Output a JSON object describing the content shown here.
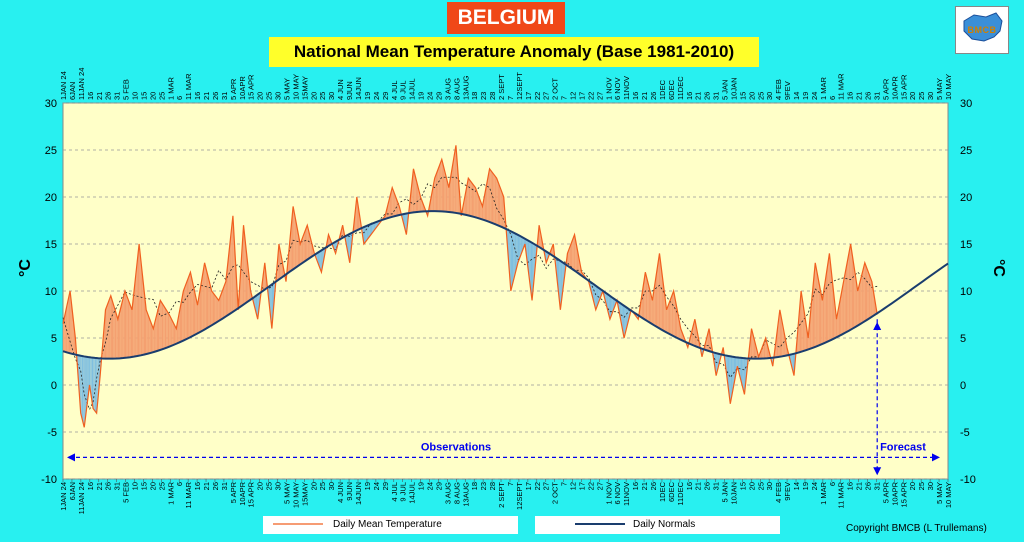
{
  "header": {
    "country": "BELGIUM",
    "title": "National Mean Temperature Anomaly (Base 1981-2010)",
    "logo_text": "BMCB"
  },
  "legend": {
    "mean_label": "Daily Mean Temperature",
    "normal_label": "Daily Normals"
  },
  "copyright": "Copyright BMCB (L Trullemans)",
  "colors": {
    "background": "#28f0f0",
    "plot_area": "#ffffc8",
    "above_normal": "#f4a070",
    "below_normal": "#7fbfe0",
    "observed_line": "#f06020",
    "normal_line": "#1a3d6e",
    "annotation": "#0000ee",
    "country_box": "#f04818",
    "title_box": "#ffff2a"
  },
  "chart_data": {
    "type": "line",
    "title": "National Mean Temperature Anomaly (Base 1981-2010)",
    "ylabel": "°C",
    "xlabel": "",
    "ylim": [
      -10,
      30
    ],
    "yticks": [
      -10,
      -5,
      0,
      5,
      10,
      15,
      20,
      25,
      30
    ],
    "grid": true,
    "x_range": [
      "2024-01-01",
      "2025-05-15"
    ],
    "x_tick_labels": [
      "1JAN 24",
      "6JAN",
      "11JAN 24",
      "16",
      "21",
      "26",
      "31",
      "5 FEB",
      "10",
      "15",
      "20",
      "25",
      "1 MAR",
      "6",
      "11 MAR",
      "16",
      "21",
      "26",
      "31",
      "5 APR",
      "10APR",
      "15 APR",
      "20",
      "25",
      "30",
      "5 MAY",
      "10 MAY",
      "15MAY",
      "20",
      "25",
      "30",
      "4 JUN",
      "9JUN",
      "14JUN",
      "19",
      "24",
      "29",
      "4 JUL",
      "9 JUL",
      "14JUL",
      "19",
      "24",
      "29",
      "3 AUG",
      "8 AUG",
      "13AUG",
      "18",
      "23",
      "28",
      "2 SEPT",
      "7",
      "12SEPT",
      "17",
      "22",
      "27",
      "2 OCT",
      "7",
      "12",
      "17",
      "22",
      "27",
      "1 NOV",
      "6 NOV",
      "11NOV",
      "16",
      "21",
      "26",
      "1DEC",
      "6DEC",
      "11DEC",
      "16",
      "21",
      "26",
      "31",
      "5 JAN",
      "10JAN",
      "15",
      "20",
      "25",
      "30",
      "4 FEB",
      "9FEV",
      "14",
      "19",
      "24",
      "1 MAR",
      "6",
      "11 MAR",
      "16",
      "21",
      "26",
      "31",
      "5 APR",
      "10APR",
      "15 APR",
      "20",
      "25",
      "30",
      "5 MAY",
      "10 MAY"
    ],
    "series": [
      {
        "name": "Daily Mean Temperature",
        "x": [
          "2024-01-01",
          "2024-01-05",
          "2024-01-08",
          "2024-01-11",
          "2024-01-13",
          "2024-01-16",
          "2024-01-18",
          "2024-01-20",
          "2024-01-22",
          "2024-01-25",
          "2024-01-28",
          "2024-02-01",
          "2024-02-05",
          "2024-02-09",
          "2024-02-13",
          "2024-02-17",
          "2024-02-21",
          "2024-02-25",
          "2024-03-01",
          "2024-03-05",
          "2024-03-09",
          "2024-03-13",
          "2024-03-17",
          "2024-03-21",
          "2024-03-25",
          "2024-03-29",
          "2024-04-02",
          "2024-04-06",
          "2024-04-09",
          "2024-04-12",
          "2024-04-16",
          "2024-04-20",
          "2024-04-24",
          "2024-04-28",
          "2024-05-02",
          "2024-05-06",
          "2024-05-10",
          "2024-05-14",
          "2024-05-18",
          "2024-05-22",
          "2024-05-26",
          "2024-05-30",
          "2024-06-03",
          "2024-06-07",
          "2024-06-11",
          "2024-06-15",
          "2024-06-19",
          "2024-06-23",
          "2024-06-27",
          "2024-07-01",
          "2024-07-05",
          "2024-07-09",
          "2024-07-13",
          "2024-07-17",
          "2024-07-21",
          "2024-07-25",
          "2024-07-29",
          "2024-08-02",
          "2024-08-06",
          "2024-08-10",
          "2024-08-13",
          "2024-08-17",
          "2024-08-21",
          "2024-08-25",
          "2024-08-29",
          "2024-09-02",
          "2024-09-06",
          "2024-09-10",
          "2024-09-14",
          "2024-09-18",
          "2024-09-22",
          "2024-09-26",
          "2024-09-30",
          "2024-10-04",
          "2024-10-08",
          "2024-10-12",
          "2024-10-16",
          "2024-10-20",
          "2024-10-24",
          "2024-10-28",
          "2024-11-01",
          "2024-11-05",
          "2024-11-09",
          "2024-11-13",
          "2024-11-17",
          "2024-11-21",
          "2024-11-25",
          "2024-11-29",
          "2024-12-03",
          "2024-12-07",
          "2024-12-11",
          "2024-12-15",
          "2024-12-19",
          "2024-12-23",
          "2024-12-27",
          "2024-12-31",
          "2025-01-04",
          "2025-01-08",
          "2025-01-12",
          "2025-01-16",
          "2025-01-20",
          "2025-01-24",
          "2025-01-28",
          "2025-02-01",
          "2025-02-05",
          "2025-02-09",
          "2025-02-13",
          "2025-02-17",
          "2025-02-21",
          "2025-02-25",
          "2025-03-01",
          "2025-03-05",
          "2025-03-09",
          "2025-03-13",
          "2025-03-17",
          "2025-03-21",
          "2025-03-25",
          "2025-03-29",
          "2025-04-02",
          "2025-04-05"
        ],
        "values": [
          6.5,
          10,
          5,
          -3,
          -4.5,
          0,
          -2.5,
          -3,
          1,
          8,
          9.5,
          7,
          10,
          8,
          15,
          8,
          6,
          9,
          7.5,
          6,
          10,
          12,
          8.5,
          13,
          10,
          9,
          11,
          18,
          8,
          17,
          10,
          7,
          13,
          6,
          15,
          11,
          19,
          15,
          17,
          14,
          12,
          16,
          14,
          17,
          13,
          20,
          15,
          16,
          17,
          18,
          21,
          19,
          16,
          23,
          20,
          18,
          22,
          24,
          21,
          25.5,
          18,
          22,
          21,
          19,
          23,
          22,
          20,
          10,
          13,
          15,
          9,
          17,
          13,
          15,
          8,
          14,
          16,
          12,
          11,
          8,
          10,
          7,
          9,
          5,
          8,
          7,
          12,
          9,
          14,
          8,
          10,
          6,
          4,
          7,
          3,
          6,
          1,
          4,
          -2,
          2,
          -1,
          6,
          3,
          5,
          2,
          8,
          4,
          1,
          10,
          5,
          13,
          9,
          14,
          7,
          11,
          15,
          10,
          13,
          11,
          7.5
        ]
      },
      {
        "name": "Daily Normals",
        "min_value": 2.8,
        "min_date": "2025-01-13",
        "max_value": 18.5,
        "max_date": "2024-07-28",
        "start_value": 3.3,
        "end_value": 12.5
      }
    ],
    "annotations": [
      {
        "text": "Observations"
      },
      {
        "text": "Forecast"
      }
    ]
  }
}
